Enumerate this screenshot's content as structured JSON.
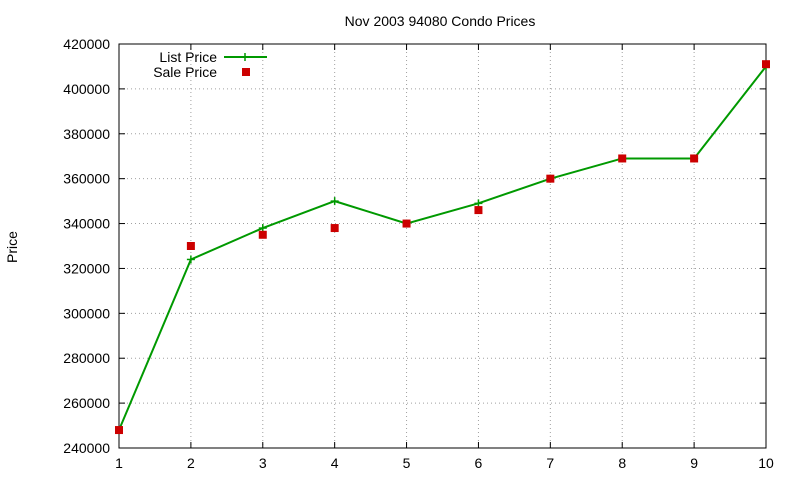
{
  "chart_data": {
    "type": "line",
    "title": "Nov 2003 94080 Condo Prices",
    "xlabel": "",
    "ylabel": "Price",
    "xlim": [
      1,
      10
    ],
    "ylim": [
      240000,
      420000
    ],
    "x_ticks": [
      "1",
      "2",
      "3",
      "4",
      "5",
      "6",
      "7",
      "8",
      "9",
      "10"
    ],
    "y_ticks": [
      "240000",
      "260000",
      "280000",
      "300000",
      "320000",
      "340000",
      "360000",
      "380000",
      "400000",
      "420000"
    ],
    "grid": true,
    "legend_position": "top-left",
    "x": [
      1,
      2,
      3,
      4,
      5,
      6,
      7,
      8,
      9,
      10
    ],
    "series": [
      {
        "name": "List Price",
        "style": "line-with-plus-markers",
        "color": "#009900",
        "values": [
          248000,
          324000,
          338000,
          350000,
          340000,
          349000,
          360000,
          369000,
          369000,
          410000
        ]
      },
      {
        "name": "Sale Price",
        "style": "square-markers",
        "color": "#cc0000",
        "values": [
          248000,
          330000,
          335000,
          338000,
          340000,
          346000,
          360000,
          369000,
          369000,
          411000
        ]
      }
    ]
  }
}
